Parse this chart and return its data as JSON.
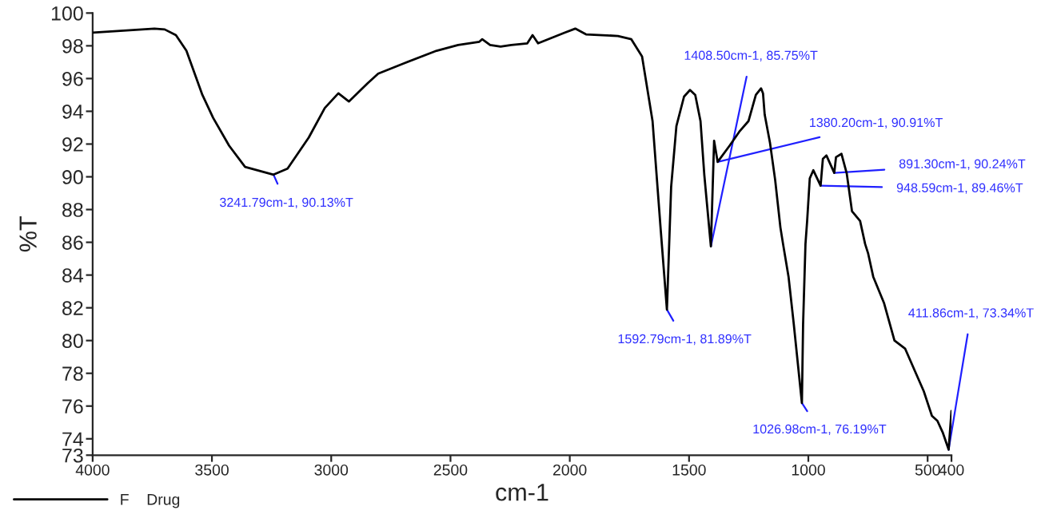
{
  "chart_data": {
    "type": "line",
    "xlabel": "cm-1",
    "ylabel": "%T",
    "xlim": [
      4000,
      400
    ],
    "xticks": [
      4000,
      3500,
      3000,
      2500,
      2000,
      1500,
      1000,
      500,
      400
    ],
    "ylim": [
      73,
      100
    ],
    "yticks": [
      73,
      74,
      76,
      78,
      80,
      82,
      84,
      86,
      88,
      90,
      92,
      94,
      96,
      98,
      100
    ],
    "grid": false,
    "legend": "bottom left",
    "marker": "none",
    "line_style": "solid",
    "series": [
      {
        "name": "F    Drug",
        "color": "#000000",
        "x": [
          4000,
          3741,
          3698,
          3651,
          3607,
          3540,
          3495,
          3428,
          3361,
          3241.79,
          3183,
          3094,
          3027,
          2970,
          2926,
          2848,
          2803,
          2692,
          2558,
          2468,
          2379,
          2367,
          2334,
          2290,
          2245,
          2178,
          2156,
          2133,
          2022,
          1977,
          1932,
          1798,
          1742,
          1697,
          1653,
          1619,
          1592.79,
          1575,
          1553,
          1521,
          1496,
          1474,
          1452,
          1436,
          1408.5,
          1395,
          1380.2,
          1330,
          1287,
          1251,
          1220,
          1198,
          1190,
          1183,
          1161,
          1139,
          1117,
          1106,
          1083,
          1061,
          1026.98,
          1022,
          1012,
          1005,
          994,
          979,
          948.59,
          939,
          924,
          891.3,
          884,
          861,
          839,
          817,
          783,
          762,
          749,
          728,
          683,
          639,
          594,
          549,
          516,
          482,
          459,
          437,
          411.86,
          400
        ],
        "values": [
          98.8,
          99.05,
          99.0,
          98.65,
          97.7,
          95.0,
          93.6,
          91.9,
          90.6,
          90.13,
          90.5,
          92.4,
          94.2,
          95.1,
          94.6,
          95.7,
          96.3,
          96.95,
          97.7,
          98.05,
          98.25,
          98.4,
          98.05,
          97.95,
          98.05,
          98.15,
          98.65,
          98.15,
          98.8,
          99.05,
          98.7,
          98.6,
          98.4,
          97.35,
          93.4,
          86.8,
          81.89,
          89.4,
          93.1,
          94.9,
          95.3,
          95.0,
          93.4,
          90.1,
          85.75,
          92.2,
          90.91,
          91.9,
          92.8,
          93.4,
          95.0,
          95.4,
          95.1,
          93.8,
          92.1,
          89.8,
          86.9,
          85.9,
          83.9,
          81.0,
          76.19,
          81.0,
          85.9,
          87.3,
          89.9,
          90.4,
          89.46,
          91.1,
          91.3,
          90.24,
          91.2,
          91.4,
          90.2,
          87.9,
          87.3,
          85.9,
          85.3,
          83.9,
          82.3,
          80.0,
          79.5,
          78.0,
          76.9,
          75.4,
          75.1,
          74.4,
          73.34,
          75.7
        ]
      }
    ],
    "annotations": [
      {
        "text": "3241.79cm-1, 90.13%T",
        "x": 3241.79,
        "y": 90.13
      },
      {
        "text": "1380.20cm-1, 90.91%T",
        "x": 1380.2,
        "y": 90.91
      },
      {
        "text": "891.30cm-1, 90.24%T",
        "x": 891.3,
        "y": 90.24
      },
      {
        "text": "948.59cm-1, 89.46%T",
        "x": 948.59,
        "y": 89.46
      },
      {
        "text": "1408.50cm-1, 85.75%T",
        "x": 1408.5,
        "y": 85.75
      },
      {
        "text": "1592.79cm-1, 81.89%T",
        "x": 1592.79,
        "y": 81.89
      },
      {
        "text": "1026.98cm-1, 76.19%T",
        "x": 1026.98,
        "y": 76.19
      },
      {
        "text": "411.86cm-1, 73.34%T",
        "x": 411.86,
        "y": 73.34
      }
    ]
  }
}
